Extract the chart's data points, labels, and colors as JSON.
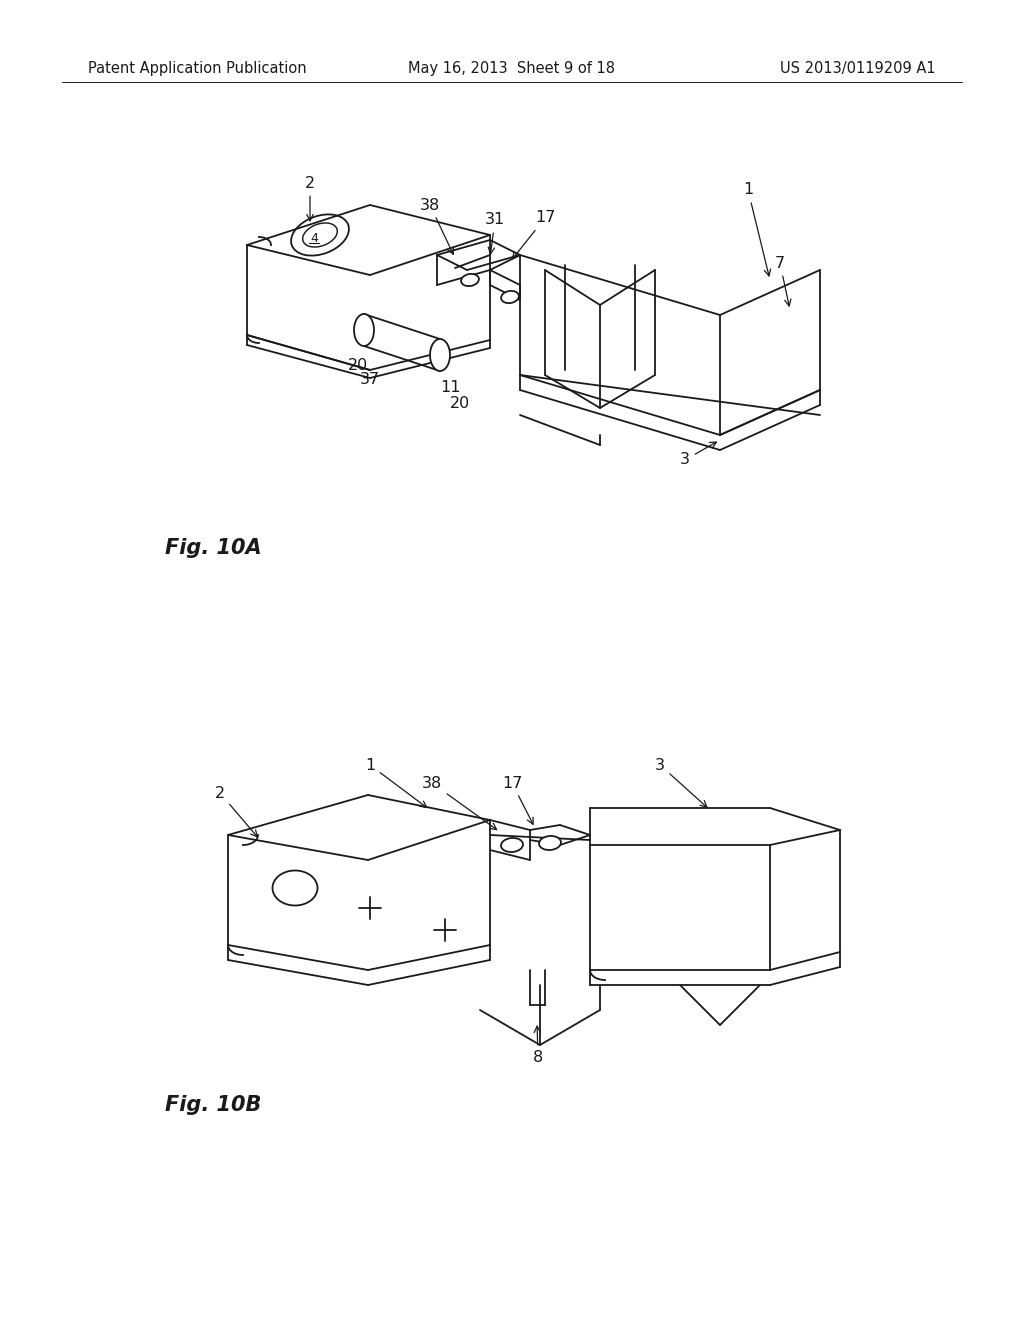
{
  "background_color": "#ffffff",
  "header_left": "Patent Application Publication",
  "header_center": "May 16, 2013  Sheet 9 of 18",
  "header_right": "US 2013/0119209 A1",
  "header_fontsize": 10.5,
  "fig_label_a": "Fig. 10A",
  "fig_label_b": "Fig. 10B",
  "fig_label_fontsize": 15,
  "annotation_fontsize": 11.5,
  "line_color": "#1a1a1a",
  "line_width": 1.3
}
